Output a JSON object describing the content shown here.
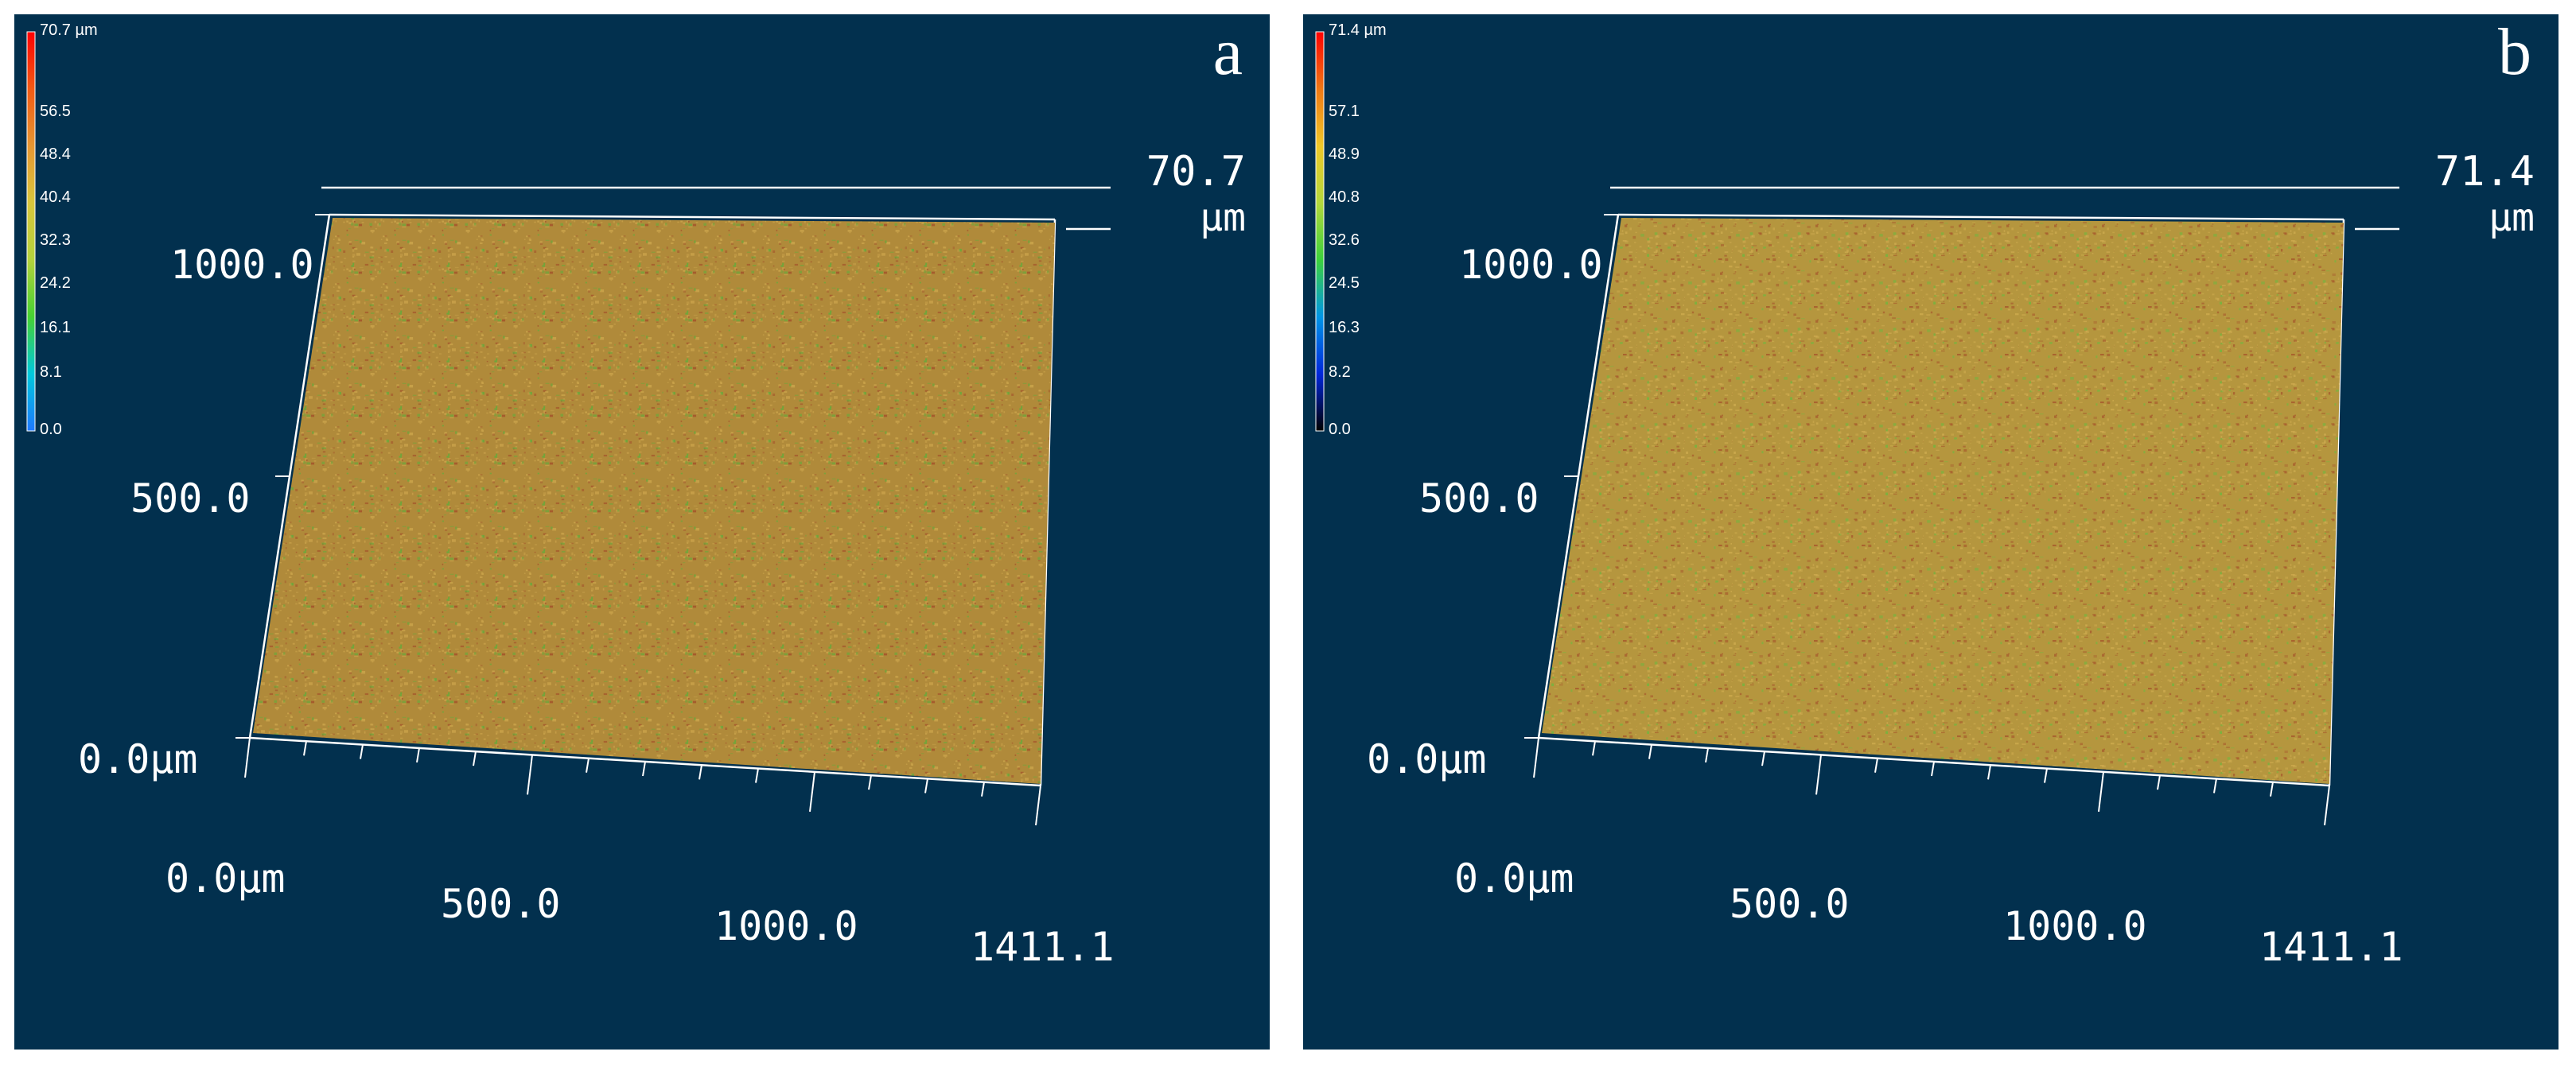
{
  "panels": [
    {
      "id": "a",
      "letter": "a",
      "colorbar": {
        "max_label": "70.7 µm",
        "tick_labels": [
          "56.5",
          "48.4",
          "40.4",
          "32.3",
          "24.2",
          "16.1",
          "8.1",
          "0.0"
        ],
        "gradient_colors": [
          "#ff0000",
          "#f25a14",
          "#e69632",
          "#d9c63c",
          "#b4d23c",
          "#46d232",
          "#00c8dc",
          "#1e78ff"
        ]
      },
      "z_axis": {
        "max_label": "70.7",
        "unit": "µm"
      },
      "y_axis": {
        "labels": [
          "1000.0",
          "500.0",
          "0.0µm"
        ]
      },
      "x_axis": {
        "labels": [
          "0.0µm",
          "500.0",
          "1000.0",
          "1411.1"
        ]
      },
      "surface_colors": {
        "base": "#b08a3a",
        "light": "#c9a24a",
        "red": "#a4582c",
        "green": "#6aa83a"
      }
    },
    {
      "id": "b",
      "letter": "b",
      "colorbar": {
        "max_label": "71.4 µm",
        "tick_labels": [
          "57.1",
          "48.9",
          "40.8",
          "32.6",
          "24.5",
          "16.3",
          "8.2",
          "0.0"
        ],
        "gradient_colors": [
          "#ff0000",
          "#f07814",
          "#f0c828",
          "#b4d83c",
          "#3cd23c",
          "#0096e6",
          "#0028dc",
          "#000000"
        ]
      },
      "z_axis": {
        "max_label": "71.4",
        "unit": "µm"
      },
      "y_axis": {
        "labels": [
          "1000.0",
          "500.0",
          "0.0µm"
        ]
      },
      "x_axis": {
        "labels": [
          "0.0µm",
          "500.0",
          "1000.0",
          "1411.1"
        ]
      },
      "surface_colors": {
        "base": "#b5963e",
        "light": "#cdaa4e",
        "red": "#a8602e",
        "green": "#7bb23e"
      }
    }
  ]
}
